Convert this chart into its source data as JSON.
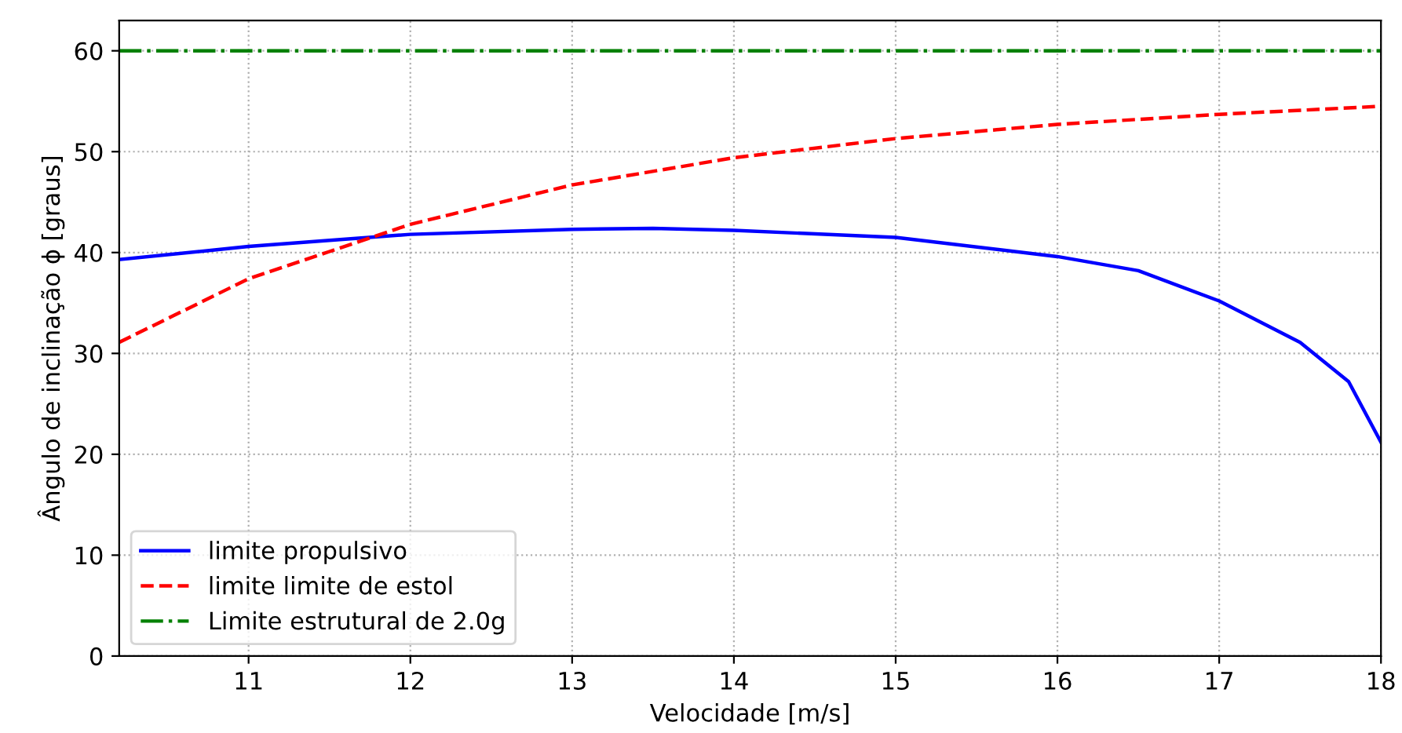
{
  "chart_data": {
    "type": "line",
    "xlabel": "Velocidade [m/s]",
    "ylabel": "Ângulo de inclinação ϕ [graus]",
    "xlim": [
      10.2,
      18
    ],
    "ylim": [
      0,
      63
    ],
    "xticks": [
      11,
      12,
      13,
      14,
      15,
      16,
      17,
      18
    ],
    "yticks": [
      0,
      10,
      20,
      30,
      40,
      50,
      60
    ],
    "grid": true,
    "legend": "bottom left",
    "series": [
      {
        "name": "limite propulsivo",
        "color": "#0000ff",
        "line_style": "solid",
        "x": [
          10.2,
          11,
          12,
          13,
          13.5,
          14,
          15,
          16,
          16.5,
          17,
          17.5,
          17.8,
          18
        ],
        "values": [
          39.3,
          40.6,
          41.8,
          42.3,
          42.4,
          42.2,
          41.5,
          39.6,
          38.2,
          35.2,
          31.1,
          27.2,
          21.2
        ]
      },
      {
        "name": "limite limite de estol",
        "color": "#ff0000",
        "line_style": "dashed",
        "x": [
          10.2,
          11,
          11.5,
          12,
          13,
          14,
          15,
          16,
          17,
          18
        ],
        "values": [
          31.1,
          37.4,
          40.1,
          42.8,
          46.7,
          49.4,
          51.3,
          52.7,
          53.7,
          54.5
        ]
      },
      {
        "name": "Limite estrutural de 2.0g",
        "color": "#008000",
        "line_style": "dashdot",
        "x": [
          10.2,
          18
        ],
        "values": [
          60,
          60
        ]
      }
    ]
  }
}
